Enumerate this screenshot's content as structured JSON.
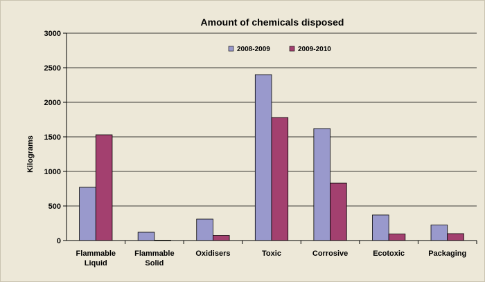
{
  "chart_data": {
    "type": "bar",
    "title": "Amount of chemicals disposed",
    "xlabel": "",
    "ylabel": "Kilograms",
    "ylim": [
      0,
      3000
    ],
    "yticks": [
      "0",
      "500",
      "1000",
      "1500",
      "2000",
      "2500",
      "3000"
    ],
    "categories": [
      [
        "Flammable",
        "Liquid"
      ],
      [
        "Flammable",
        "Solid"
      ],
      [
        "Oxidisers"
      ],
      [
        "Toxic"
      ],
      [
        "Corrosive"
      ],
      [
        "Ecotoxic"
      ],
      [
        "Packaging"
      ]
    ],
    "series": [
      {
        "name": "2008-2009",
        "color": "#9999cc",
        "values": [
          770,
          120,
          310,
          2400,
          1620,
          370,
          225
        ]
      },
      {
        "name": "2009-2010",
        "color": "#a3406f",
        "values": [
          1530,
          5,
          75,
          1780,
          830,
          95,
          100
        ]
      }
    ],
    "grid": true,
    "legend": "top-center"
  }
}
